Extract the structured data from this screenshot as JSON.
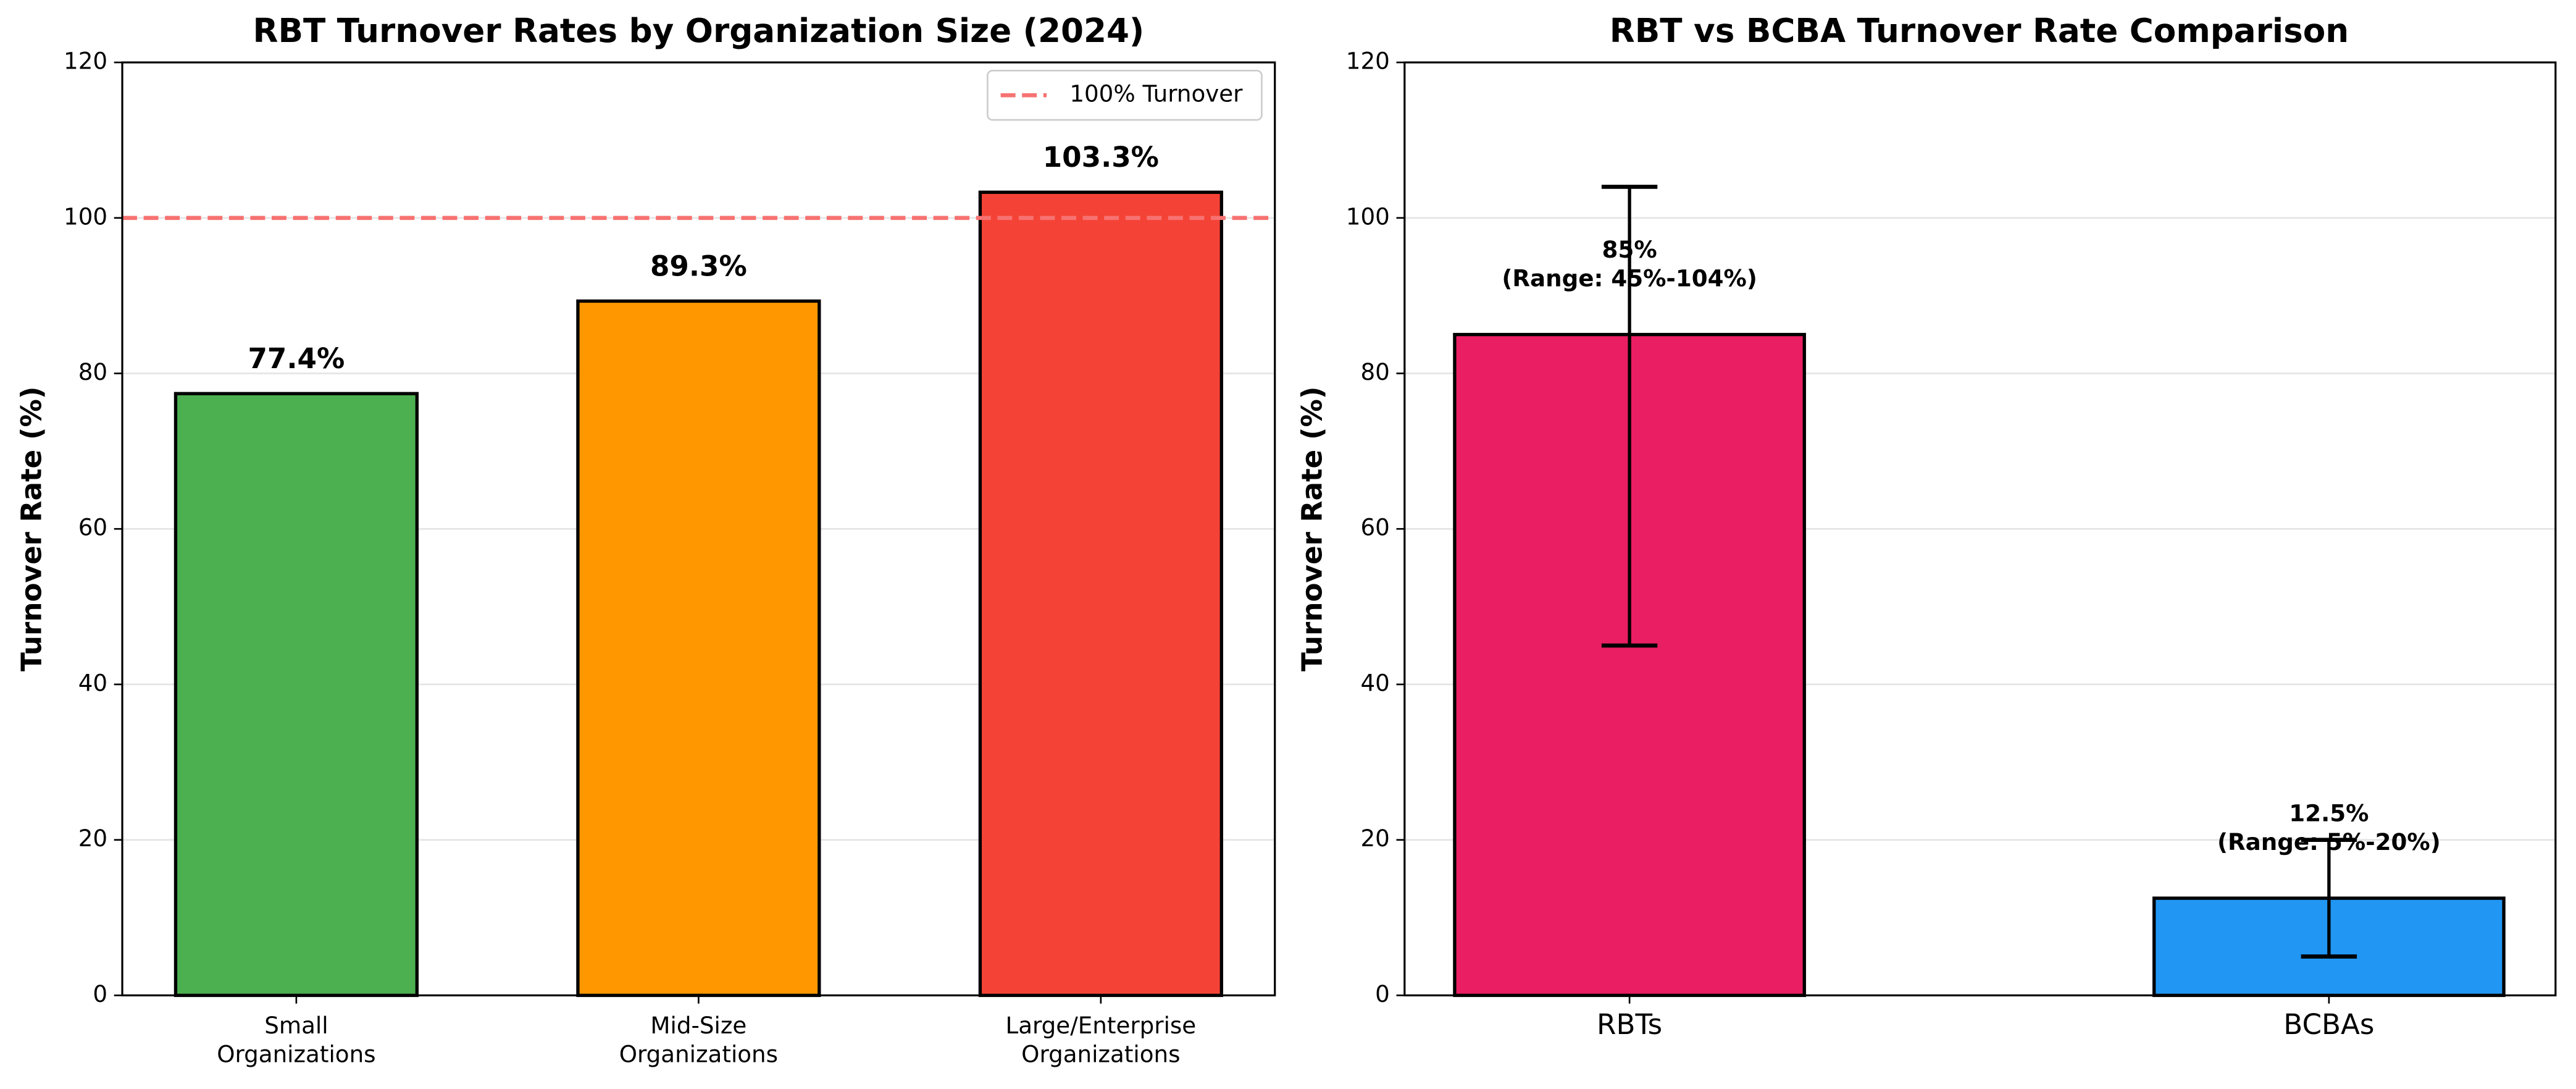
{
  "chart_data": [
    {
      "type": "bar",
      "title": "RBT Turnover Rates by Organization Size (2024)",
      "ylabel": "Turnover Rate (%)",
      "categories": [
        "Small\nOrganizations",
        "Mid-Size\nOrganizations",
        "Large/Enterprise\nOrganizations"
      ],
      "values": [
        77.4,
        89.3,
        103.3
      ],
      "value_labels": [
        "77.4%",
        "89.3%",
        "103.3%"
      ],
      "colors": [
        "#4caf50",
        "#ff9800",
        "#f44336"
      ],
      "ylim": [
        0,
        120
      ],
      "yticks": [
        0,
        20,
        40,
        60,
        80,
        100,
        120
      ],
      "grid": true,
      "reference_line": {
        "value": 100,
        "label": "100% Turnover",
        "color": "#f77272"
      },
      "legend": "upper right"
    },
    {
      "type": "errorbar",
      "title": "RBT vs BCBA Turnover Rate Comparison",
      "ylabel": "Turnover Rate (%)",
      "categories": [
        "RBTs",
        "BCBAs"
      ],
      "values": [
        85,
        12.5
      ],
      "range_low": [
        45,
        5
      ],
      "range_high": [
        104,
        20
      ],
      "value_labels": [
        "85%\n(Range: 45%-104%)",
        "12.5%\n(Range: 5%-20%)"
      ],
      "colors": [
        "#e91e63",
        "#2196f3"
      ],
      "ylim": [
        0,
        120
      ],
      "yticks": [
        0,
        20,
        40,
        60,
        80,
        100,
        120
      ],
      "grid": true
    }
  ]
}
